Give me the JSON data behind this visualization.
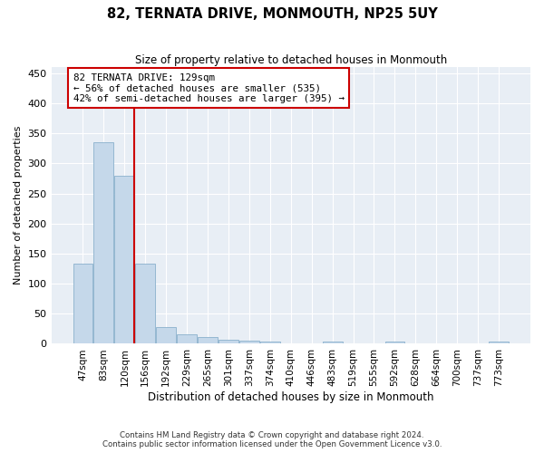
{
  "title": "82, TERNATA DRIVE, MONMOUTH, NP25 5UY",
  "subtitle": "Size of property relative to detached houses in Monmouth",
  "xlabel": "Distribution of detached houses by size in Monmouth",
  "ylabel": "Number of detached properties",
  "categories": [
    "47sqm",
    "83sqm",
    "120sqm",
    "156sqm",
    "192sqm",
    "229sqm",
    "265sqm",
    "301sqm",
    "337sqm",
    "374sqm",
    "410sqm",
    "446sqm",
    "483sqm",
    "519sqm",
    "555sqm",
    "592sqm",
    "628sqm",
    "664sqm",
    "700sqm",
    "737sqm",
    "773sqm"
  ],
  "values": [
    133,
    335,
    280,
    133,
    28,
    16,
    11,
    7,
    5,
    4,
    0,
    0,
    4,
    0,
    0,
    4,
    0,
    0,
    0,
    0,
    4
  ],
  "bar_color": "#c5d8ea",
  "bar_edge_color": "#8ab0cc",
  "red_line_color": "#cc0000",
  "annotation_line1": "82 TERNATA DRIVE: 129sqm",
  "annotation_line2": "← 56% of detached houses are smaller (535)",
  "annotation_line3": "42% of semi-detached houses are larger (395) →",
  "annotation_box_facecolor": "#ffffff",
  "annotation_box_edgecolor": "#cc0000",
  "ylim": [
    0,
    460
  ],
  "yticks": [
    0,
    50,
    100,
    150,
    200,
    250,
    300,
    350,
    400,
    450
  ],
  "grid_color": "#ffffff",
  "background_color": "#e8eef5",
  "footer_line1": "Contains HM Land Registry data © Crown copyright and database right 2024.",
  "footer_line2": "Contains public sector information licensed under the Open Government Licence v3.0."
}
